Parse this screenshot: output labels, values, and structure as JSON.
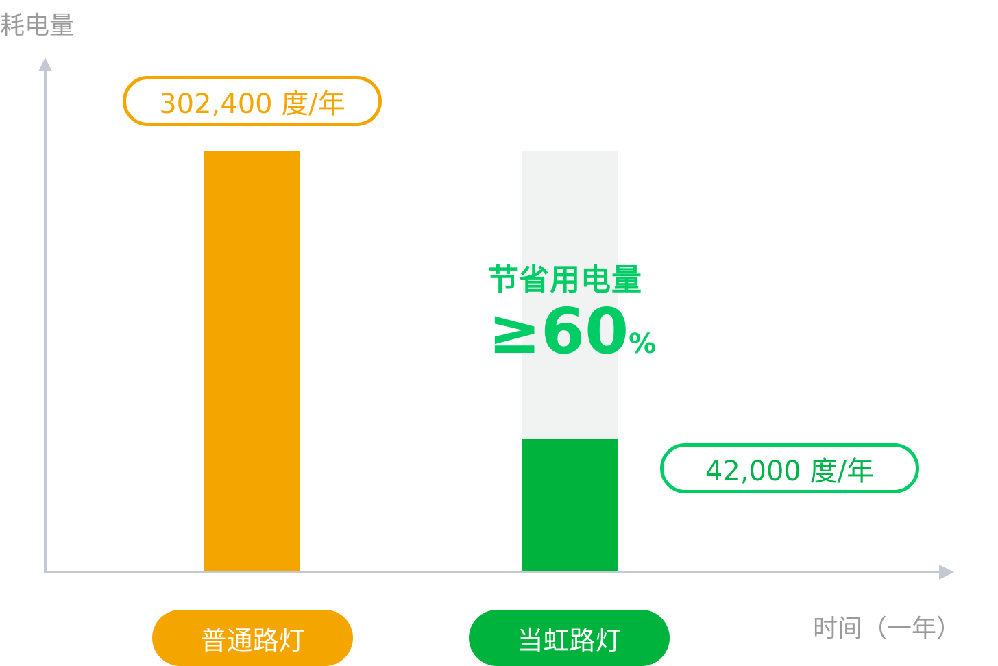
{
  "chart_data": {
    "type": "bar",
    "ylabel": "耗电量",
    "xlabel": "时间（一年）",
    "categories": [
      "普通路灯",
      "当虹路灯"
    ],
    "values": [
      302400,
      42000
    ],
    "value_labels": [
      "302,400 度/年",
      "42,000 度/年"
    ],
    "colors": [
      "#f5a500",
      "#00b33c"
    ],
    "background_bar_color": "#f1f3f2",
    "annotation": {
      "title": "节省用电量",
      "value": "≥60",
      "unit": "%"
    },
    "grid": false
  }
}
